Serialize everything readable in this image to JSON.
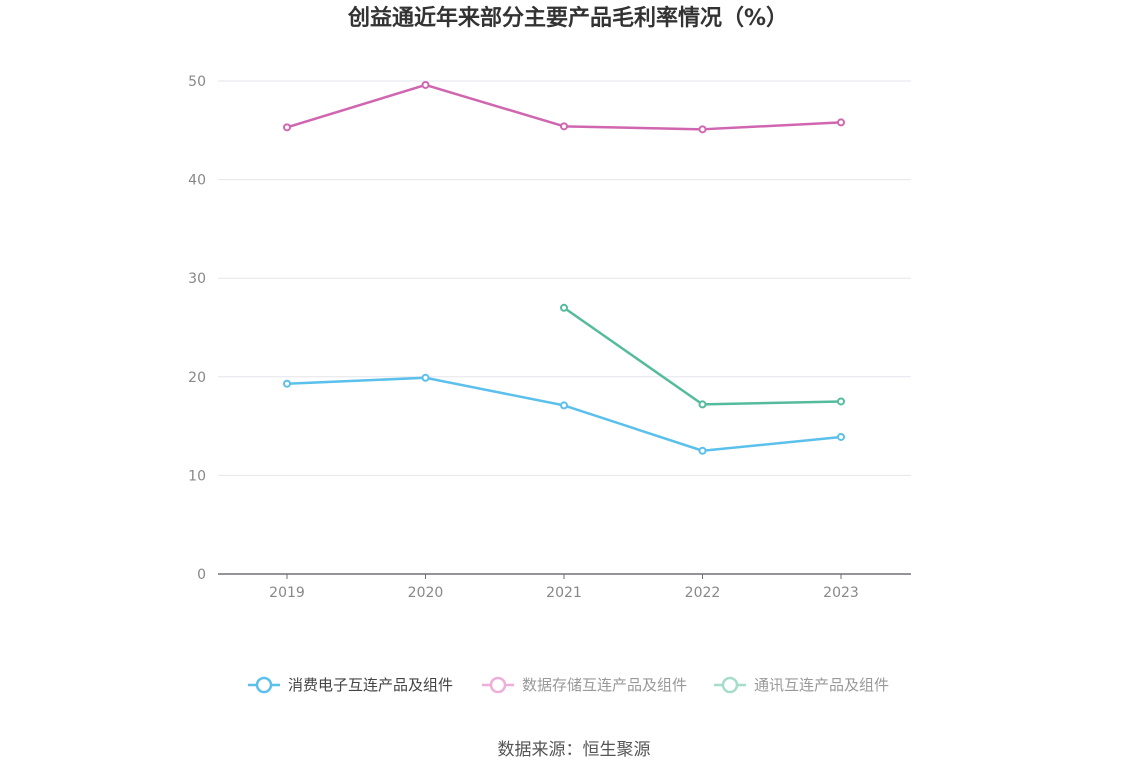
{
  "chart_data": {
    "type": "line",
    "title": "创益通近年来部分主要产品毛利率情况（%）",
    "categories": [
      "2019",
      "2020",
      "2021",
      "2022",
      "2023"
    ],
    "ylim": [
      0,
      50
    ],
    "yticks": [
      0,
      10,
      20,
      30,
      40,
      50
    ],
    "grid": true,
    "legend_position": "bottom",
    "series": [
      {
        "name": "消费电子互连产品及组件",
        "color": "#5bc0eb",
        "values": [
          19.3,
          19.9,
          17.1,
          12.5,
          13.9
        ]
      },
      {
        "name": "数据存储互连产品及组件",
        "color": "#d066b0",
        "values": [
          45.3,
          49.6,
          45.4,
          45.1,
          45.8
        ]
      },
      {
        "name": "通讯互连产品及组件",
        "color": "#55bb9d",
        "values": [
          null,
          null,
          27.0,
          17.2,
          17.5
        ]
      }
    ],
    "source": "数据来源：恒生聚源"
  }
}
